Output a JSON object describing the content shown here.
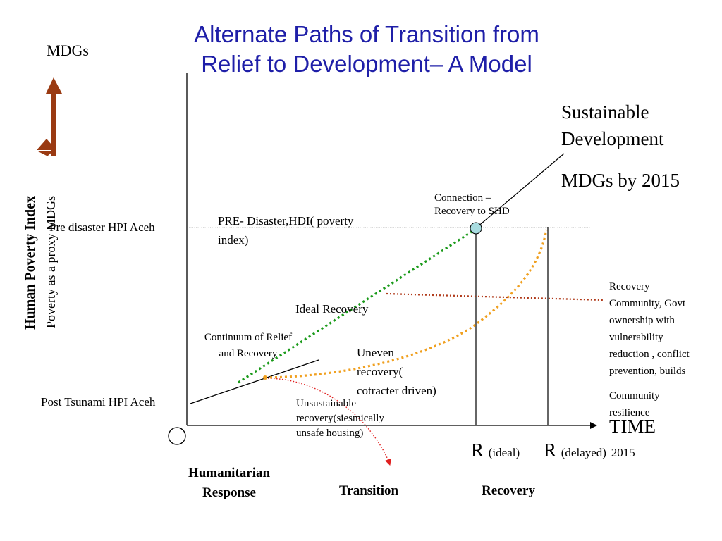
{
  "title": {
    "line1": "Alternate Paths of Transition from",
    "line2": "Relief to Development– A Model"
  },
  "y_axis": {
    "top_label": "MDGs",
    "label_bold": "Human Poverty Index",
    "label_sub": "Poverty as a proxy MDGs"
  },
  "labels": {
    "sustainable_line1": "Sustainable",
    "sustainable_line2": "Development",
    "mdgs_2015": "MDGs by 2015",
    "connection_line1": "Connection –",
    "connection_line2": "Recovery to SHD",
    "pre_disaster_hpi": "Pre disaster HPI Aceh",
    "pre_disaster_hdi_line1": "PRE- Disaster,HDI( poverty",
    "pre_disaster_hdi_line2": "index)",
    "recovery_community": [
      "Recovery",
      "Community, Govt",
      "ownership with",
      "vulnerability",
      "reduction , conflict",
      "prevention, builds"
    ],
    "community_resilience": [
      "Community",
      "resilience"
    ],
    "ideal_recovery": "Ideal Recovery",
    "continuum_line1": "Continuum of Relief",
    "continuum_line2": "and Recovery",
    "uneven": [
      "Uneven",
      "recovery(",
      "cotracter driven)"
    ],
    "post_tsunami_hpi": "Post Tsunami HPI Aceh",
    "unsustainable": [
      "Unsustainable",
      "recovery(siesmically",
      "unsafe housing)"
    ],
    "time": "TIME",
    "r_ideal_r": "R",
    "r_ideal_sub": "(ideal)",
    "r_delayed_r": "R",
    "r_delayed_sub": "(delayed)",
    "year_2015": "2015"
  },
  "phases": {
    "humanitarian_line1": "Humanitarian",
    "humanitarian_line2": "Response",
    "transition": "Transition",
    "recovery": "Recovery"
  },
  "colors": {
    "title": "#1f1fa8",
    "ideal_path": "#1a9a1a",
    "uneven_path": "#f0a020",
    "recovery_community_path": "#b03a1a",
    "unsustainable_path": "#e02020",
    "arrow": "#9a3a12",
    "connection_dot": "#a8dce0"
  }
}
